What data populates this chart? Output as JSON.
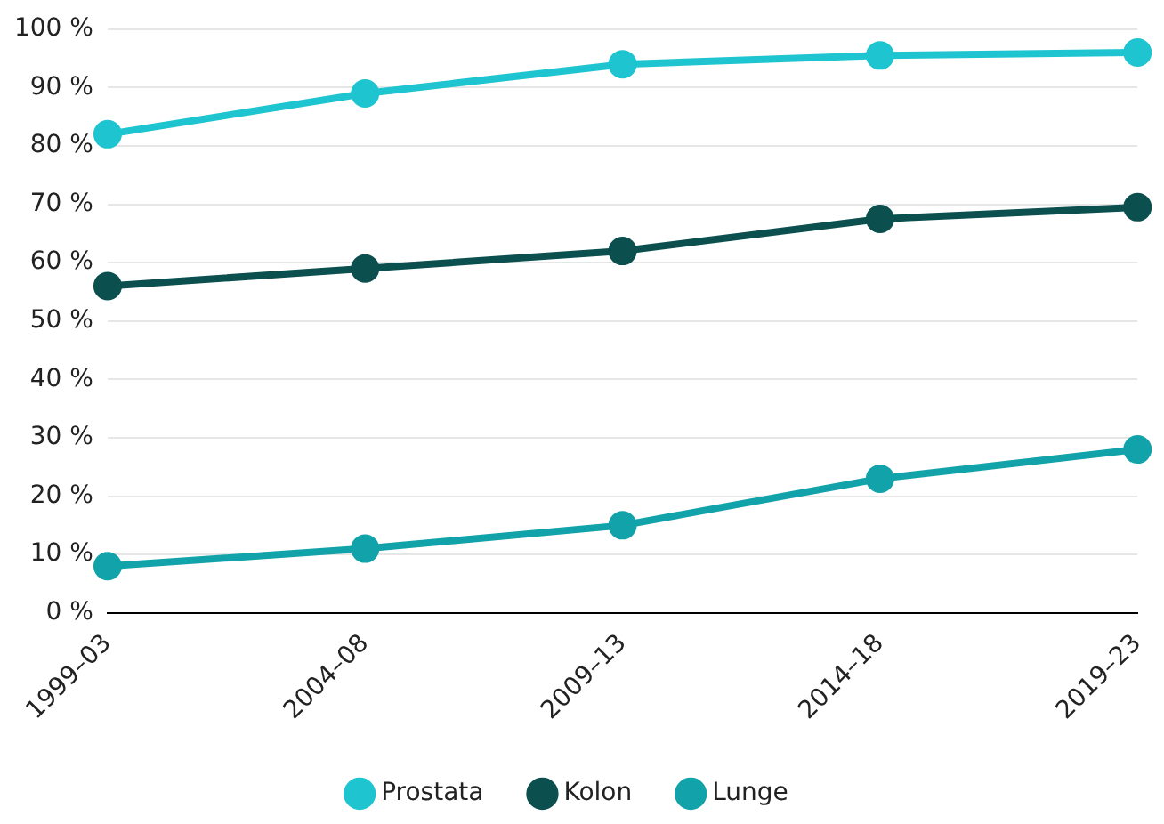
{
  "chart_data": {
    "type": "line",
    "categories": [
      "1999–03",
      "2004–08",
      "2009–13",
      "2014–18",
      "2019–23"
    ],
    "series": [
      {
        "name": "Prostata",
        "color": "#1ec5d0",
        "values": [
          82,
          89,
          94,
          95.5,
          96
        ]
      },
      {
        "name": "Kolon",
        "color": "#0b4f4f",
        "values": [
          56,
          59,
          62,
          67.5,
          69.5
        ]
      },
      {
        "name": "Lunge",
        "color": "#12a3aa",
        "values": [
          8,
          11,
          15,
          23,
          28
        ]
      }
    ],
    "ylim": [
      0,
      100
    ],
    "yticks": [
      {
        "value": 0,
        "label": "0 %"
      },
      {
        "value": 10,
        "label": "10 %"
      },
      {
        "value": 20,
        "label": "20 %"
      },
      {
        "value": 30,
        "label": "30 %"
      },
      {
        "value": 40,
        "label": "40 %"
      },
      {
        "value": 50,
        "label": "50 %"
      },
      {
        "value": 60,
        "label": "60 %"
      },
      {
        "value": 70,
        "label": "70 %"
      },
      {
        "value": 80,
        "label": "80 %"
      },
      {
        "value": 90,
        "label": "90 %"
      },
      {
        "value": 100,
        "label": "100 %"
      }
    ],
    "grid": "y",
    "legend": "bottom",
    "marker": "circle",
    "line_style": "solid"
  }
}
